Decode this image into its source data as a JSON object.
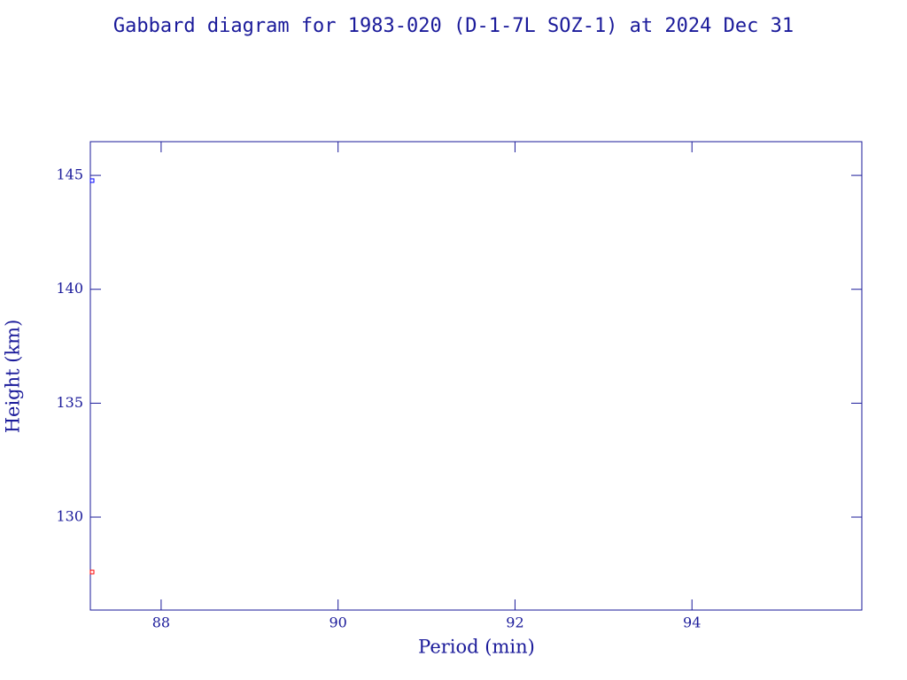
{
  "chart_data": {
    "type": "scatter",
    "title": "Gabbard diagram for 1983-020 (D-1-7L SOZ-1) at 2024 Dec 31",
    "x_label": "Period (min)",
    "y_label": "Height (km)",
    "xlim": [
      87.2,
      95.92
    ],
    "ylim": [
      125.92,
      146.48
    ],
    "xticks": [
      88,
      90,
      92,
      94
    ],
    "yticks": [
      130,
      135,
      140,
      145
    ],
    "series": [
      {
        "color": "#0000ff",
        "x": [
          87.22
        ],
        "values": [
          144.77
        ]
      },
      {
        "color": "#ff0000",
        "x": [
          87.22
        ],
        "values": [
          127.59
        ]
      }
    ]
  }
}
